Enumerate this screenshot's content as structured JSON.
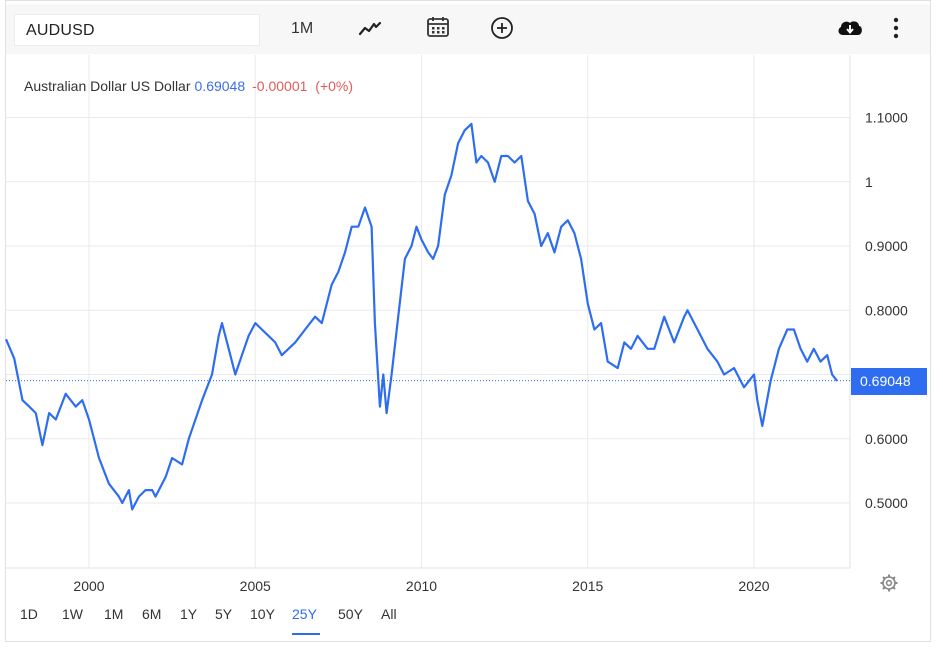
{
  "toolbar": {
    "symbol": "AUDUSD",
    "period": "1M",
    "icons": [
      "line-chart-icon",
      "calendar-icon",
      "add-compare-icon",
      "cloud-download-icon",
      "more-vertical-icon"
    ]
  },
  "legend": {
    "name": "Australian Dollar US Dollar",
    "price": "0.69048",
    "change": "-0.00001",
    "change_pct": "(+0%)"
  },
  "price_tag": "0.69048",
  "periods": [
    {
      "label": "1D"
    },
    {
      "label": "1W"
    },
    {
      "label": "1M"
    },
    {
      "label": "6M"
    },
    {
      "label": "1Y"
    },
    {
      "label": "5Y"
    },
    {
      "label": "10Y"
    },
    {
      "label": "25Y",
      "active": true
    },
    {
      "label": "50Y"
    },
    {
      "label": "All"
    }
  ],
  "colors": {
    "line": "#2f6df0",
    "price": "#3b6ee8",
    "change": "#e05b5b",
    "grid": "#e9e9ef"
  },
  "chart_data": {
    "type": "line",
    "title": "",
    "xlabel": "",
    "ylabel": "",
    "xlim": [
      1997.5,
      2022.5
    ],
    "ylim": [
      0.4,
      1.15
    ],
    "x_ticks": [
      2000,
      2005,
      2010,
      2015,
      2020
    ],
    "x_tick_labels": [
      "2000",
      "2005",
      "2010",
      "2015",
      "2020"
    ],
    "y_ticks": [
      0.5,
      0.6,
      0.7,
      0.8,
      0.9,
      1.0,
      1.1
    ],
    "y_tick_labels": [
      "0.5000",
      "0.6000",
      "",
      "0.8000",
      "0.9000",
      "1",
      "1.1000"
    ],
    "grid": true,
    "last_value": 0.69048,
    "series": [
      {
        "x": [
          1997.5,
          1997.75,
          1998.0,
          1998.2,
          1998.4,
          1998.6,
          1998.8,
          1999.0,
          1999.3,
          1999.6,
          1999.8,
          2000.0,
          2000.3,
          2000.6,
          2000.9,
          2001.0,
          2001.2,
          2001.3,
          2001.5,
          2001.7,
          2001.9,
          2002.0,
          2002.3,
          2002.5,
          2002.8,
          2003.0,
          2003.4,
          2003.7,
          2003.9,
          2004.0,
          2004.2,
          2004.4,
          2004.6,
          2004.8,
          2005.0,
          2005.2,
          2005.4,
          2005.6,
          2005.8,
          2006.0,
          2006.2,
          2006.5,
          2006.8,
          2007.0,
          2007.3,
          2007.5,
          2007.7,
          2007.9,
          2008.1,
          2008.3,
          2008.5,
          2008.6,
          2008.75,
          2008.85,
          2008.95,
          2009.1,
          2009.3,
          2009.5,
          2009.7,
          2009.85,
          2010.0,
          2010.2,
          2010.35,
          2010.5,
          2010.7,
          2010.9,
          2011.1,
          2011.3,
          2011.5,
          2011.65,
          2011.8,
          2012.0,
          2012.2,
          2012.4,
          2012.6,
          2012.8,
          2013.0,
          2013.2,
          2013.4,
          2013.6,
          2013.8,
          2014.0,
          2014.2,
          2014.4,
          2014.6,
          2014.8,
          2015.0,
          2015.2,
          2015.4,
          2015.6,
          2015.9,
          2016.1,
          2016.3,
          2016.5,
          2016.8,
          2017.0,
          2017.3,
          2017.6,
          2017.9,
          2018.0,
          2018.3,
          2018.6,
          2018.9,
          2019.1,
          2019.4,
          2019.7,
          2020.0,
          2020.1,
          2020.25,
          2020.5,
          2020.75,
          2021.0,
          2021.2,
          2021.4,
          2021.6,
          2021.8,
          2022.0,
          2022.2,
          2022.35,
          2022.5
        ],
        "y": [
          0.755,
          0.725,
          0.66,
          0.65,
          0.64,
          0.59,
          0.64,
          0.63,
          0.67,
          0.65,
          0.66,
          0.63,
          0.57,
          0.53,
          0.51,
          0.5,
          0.52,
          0.49,
          0.51,
          0.52,
          0.52,
          0.51,
          0.54,
          0.57,
          0.56,
          0.6,
          0.66,
          0.7,
          0.76,
          0.78,
          0.74,
          0.7,
          0.73,
          0.76,
          0.78,
          0.77,
          0.76,
          0.75,
          0.73,
          0.74,
          0.75,
          0.77,
          0.79,
          0.78,
          0.84,
          0.86,
          0.89,
          0.93,
          0.93,
          0.96,
          0.93,
          0.78,
          0.65,
          0.7,
          0.64,
          0.7,
          0.79,
          0.88,
          0.9,
          0.93,
          0.91,
          0.89,
          0.88,
          0.9,
          0.98,
          1.01,
          1.06,
          1.08,
          1.09,
          1.03,
          1.04,
          1.03,
          1.0,
          1.04,
          1.04,
          1.03,
          1.04,
          0.97,
          0.95,
          0.9,
          0.92,
          0.89,
          0.93,
          0.94,
          0.92,
          0.88,
          0.81,
          0.77,
          0.78,
          0.72,
          0.71,
          0.75,
          0.74,
          0.76,
          0.74,
          0.74,
          0.79,
          0.75,
          0.79,
          0.8,
          0.77,
          0.74,
          0.72,
          0.7,
          0.71,
          0.68,
          0.7,
          0.66,
          0.62,
          0.69,
          0.74,
          0.77,
          0.77,
          0.74,
          0.72,
          0.74,
          0.72,
          0.73,
          0.7,
          0.69
        ]
      }
    ]
  }
}
